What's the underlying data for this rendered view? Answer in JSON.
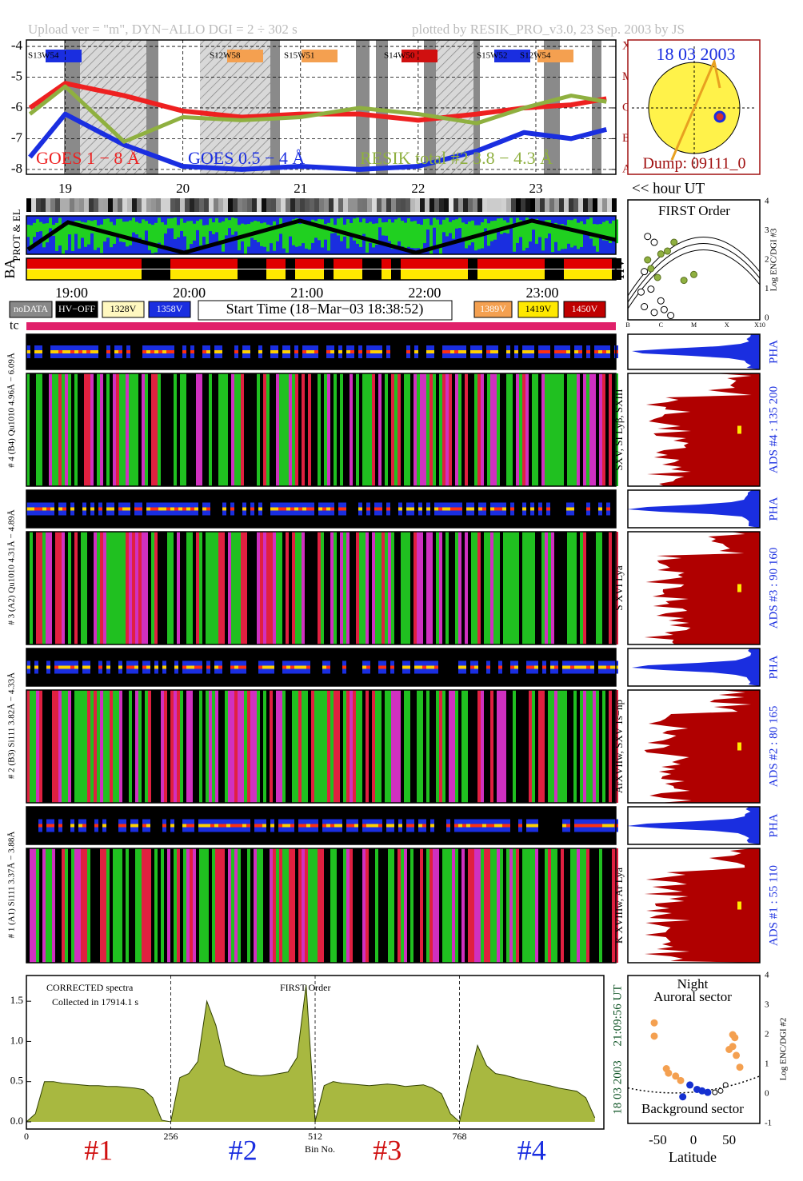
{
  "header": {
    "left": "Upload ver = \"m\", DYN−ALLO DGI =   2 ÷ 302 s",
    "right": "plotted by RESIK_PRO_v3.0, 23 Sep. 2003 by JS"
  },
  "sun": {
    "date": "18 03 2003",
    "dump": "Dump: 09111_0"
  },
  "timeline": {
    "side_labels": [
      "PROT & EL",
      "BA",
      "HV"
    ],
    "time_labels": [
      "19:00",
      "20:00",
      "21:00",
      "22:00",
      "23:00"
    ],
    "legend_left": [
      "noDATA",
      "HV−OFF",
      "1328V",
      "1358V"
    ],
    "start_time": "Start Time (18−Mar−03 18:38:52)",
    "legend_right": [
      "1389V",
      "1419V",
      "1450V"
    ],
    "tc": "tc"
  },
  "channels": [
    {
      "left": "# 4 (B4) Qu1010 4.96Å − 6.09Å",
      "lines": "SXV, SI Lyβ, SXIII",
      "ads": "ADS #4 :   135 200",
      "pha": "PHA"
    },
    {
      "left": "# 3 (A2) Qu1010 4.31Å − 4.89Å",
      "lines": "S XVI Lya",
      "ads": "ADS #3 :   90 160",
      "pha": "PHA"
    },
    {
      "left": "# 2 (B3) Si111 3.82Å − 4.33Å",
      "lines": "ArXVIIw, SXV 1s−np",
      "ads": "ADS #2 :   80 165",
      "pha": "PHA"
    },
    {
      "left": "# 1 (A1) Si111 3.37Å − 3.88Å",
      "lines": "K XVIIIw, Ar Lya",
      "ads": "ADS #1 :   55 110",
      "pha": "PHA"
    }
  ],
  "chart_data": [
    {
      "type": "line",
      "xlabel": "<< hour UT",
      "regions": [
        "S13W54",
        "S12W58",
        "S15W51",
        "S14W50",
        "S15W52",
        "S12W54"
      ],
      "x": [
        18.7,
        19.0,
        19.5,
        20.0,
        20.5,
        21.0,
        21.5,
        22.0,
        22.5,
        22.9,
        23.3,
        23.6
      ],
      "series": [
        {
          "name": "GOES 1 − 8 Å",
          "color": "#ee2020",
          "values": [
            -6.0,
            -5.2,
            -5.6,
            -6.1,
            -6.3,
            -6.2,
            -6.2,
            -6.4,
            -6.2,
            -6.0,
            -5.9,
            -5.7
          ]
        },
        {
          "name": "GOES 0.5 − 4 Å",
          "color": "#1a2ee0",
          "values": [
            -7.6,
            -6.2,
            -7.2,
            -7.9,
            -8.0,
            -7.9,
            -8.0,
            -7.9,
            -7.4,
            -6.8,
            -7.0,
            -6.7
          ]
        },
        {
          "name": "RESIK total #2  3.8 − 4.3 Å",
          "color": "#8fb040",
          "values": [
            -6.2,
            -5.3,
            -7.1,
            -6.3,
            -6.4,
            -6.3,
            -6.0,
            -6.2,
            -6.5,
            -6.0,
            -5.6,
            -5.8
          ]
        }
      ],
      "xlim": [
        18.67,
        23.68
      ],
      "xticks": [
        19,
        20,
        21,
        22,
        23
      ],
      "ylim": [
        -8.16,
        -3.79
      ],
      "yticks": [
        -4,
        -5,
        -6,
        -7,
        -8
      ],
      "y2ticks": [
        {
          "value": -8,
          "label": "A"
        },
        {
          "value": -7,
          "label": "B"
        },
        {
          "value": -6,
          "label": "C"
        },
        {
          "value": -5,
          "label": "M"
        },
        {
          "value": -4,
          "label": "X"
        }
      ],
      "grid": true
    },
    {
      "type": "scatter",
      "title": "FIRST Order",
      "ylabel": "Log ENC/DGI #3",
      "series": [
        {
          "color": "#ffffff",
          "x": [
            -6.4,
            -6.2,
            -6.5,
            -6.3,
            -6.0,
            -6.5,
            -6.2,
            -5.9,
            -5.7,
            -6.6
          ],
          "values": [
            2.8,
            2.6,
            1.6,
            1.0,
            0.6,
            0.4,
            0.2,
            0.3,
            0.1,
            0.9
          ]
        },
        {
          "color": "#8fb040",
          "x": [
            -6.4,
            -6.3,
            -6.0,
            -5.8,
            -5.6,
            -5.3,
            -5.0,
            -6.1
          ],
          "values": [
            2.0,
            1.7,
            2.2,
            2.3,
            2.6,
            1.3,
            1.5,
            1.4
          ]
        }
      ],
      "xlim": [
        -7,
        -3
      ],
      "xticks": [
        {
          "value": -7,
          "label": "B"
        },
        {
          "value": -6,
          "label": "C"
        },
        {
          "value": -5,
          "label": "M"
        },
        {
          "value": -4,
          "label": "X"
        },
        {
          "value": -3,
          "label": "X10"
        }
      ],
      "ylim": [
        -0.05,
        4.05
      ],
      "yticks": [
        0,
        1,
        2,
        3,
        4
      ]
    },
    {
      "type": "area",
      "title": "CORRECTED spectra",
      "subtitle": "Collected in 17914.1 s",
      "annotation": "FIRST Order",
      "xlabel": "Bin No.",
      "sections": [
        "#1",
        "#2",
        "#3",
        "#4"
      ],
      "time": "21:09:56 UT",
      "date": "18 03 2003",
      "color": "#a8b840",
      "x": [
        0,
        16,
        32,
        48,
        64,
        80,
        96,
        112,
        128,
        144,
        160,
        176,
        192,
        208,
        224,
        240,
        256,
        272,
        288,
        304,
        320,
        336,
        352,
        368,
        384,
        400,
        416,
        432,
        448,
        464,
        480,
        496,
        512,
        528,
        544,
        560,
        576,
        592,
        608,
        624,
        640,
        656,
        672,
        688,
        704,
        720,
        736,
        752,
        768,
        784,
        800,
        816,
        832,
        848,
        864,
        880,
        896,
        912,
        928,
        944,
        960,
        976,
        992,
        1008
      ],
      "values": [
        0,
        0.1,
        0.5,
        0.5,
        0.48,
        0.47,
        0.46,
        0.45,
        0.45,
        0.44,
        0.44,
        0.43,
        0.42,
        0.4,
        0.3,
        0.02,
        0,
        0.55,
        0.6,
        0.75,
        1.5,
        1.2,
        0.7,
        0.65,
        0.6,
        0.58,
        0.57,
        0.58,
        0.6,
        0.62,
        0.8,
        1.7,
        0,
        0.45,
        0.5,
        0.48,
        0.47,
        0.46,
        0.45,
        0.46,
        0.47,
        0.46,
        0.44,
        0.45,
        0.46,
        0.42,
        0.35,
        0.1,
        0,
        0.5,
        0.95,
        0.7,
        0.6,
        0.58,
        0.55,
        0.52,
        0.5,
        0.47,
        0.45,
        0.42,
        0.4,
        0.38,
        0.3,
        0.05
      ],
      "xlim": [
        0,
        1024
      ],
      "xticks": [
        0,
        256,
        512,
        768
      ],
      "ylim": [
        -0.09,
        1.82
      ],
      "yticks": [
        {
          "value": 0,
          "label": "0.0"
        },
        {
          "value": 0.5,
          "label": "0.5"
        },
        {
          "value": 1,
          "label": "1.0"
        },
        {
          "value": 1.5,
          "label": "1.5"
        }
      ]
    },
    {
      "type": "scatter",
      "title": "Night",
      "subtitle": "Auroral sector",
      "annotation": "Background sector",
      "xlabel": "Latitude",
      "ylabel": "Log ENC/DGI #2",
      "series": [
        {
          "color": "#f4a050",
          "x": [
            -55,
            -55,
            -38,
            -35,
            -25,
            -18,
            55,
            58,
            55,
            60,
            65,
            50
          ],
          "values": [
            2.4,
            1.95,
            0.85,
            0.7,
            0.6,
            0.45,
            2.0,
            1.9,
            1.6,
            1.3,
            0.9,
            1.5
          ]
        },
        {
          "color": "#1530d0",
          "x": [
            -15,
            5,
            12,
            20,
            -5
          ],
          "values": [
            -0.1,
            0.15,
            0.1,
            0.05,
            0.3
          ]
        },
        {
          "color": "#ffffff",
          "x": [
            30,
            38,
            45
          ],
          "values": [
            0.05,
            0.1,
            0.3
          ]
        }
      ],
      "xlim": [
        -92,
        93
      ],
      "xticks": [
        -50,
        0,
        50
      ],
      "ylim": [
        -1,
        4
      ],
      "yticks": [
        -1,
        0,
        1,
        2,
        3,
        4
      ]
    }
  ]
}
